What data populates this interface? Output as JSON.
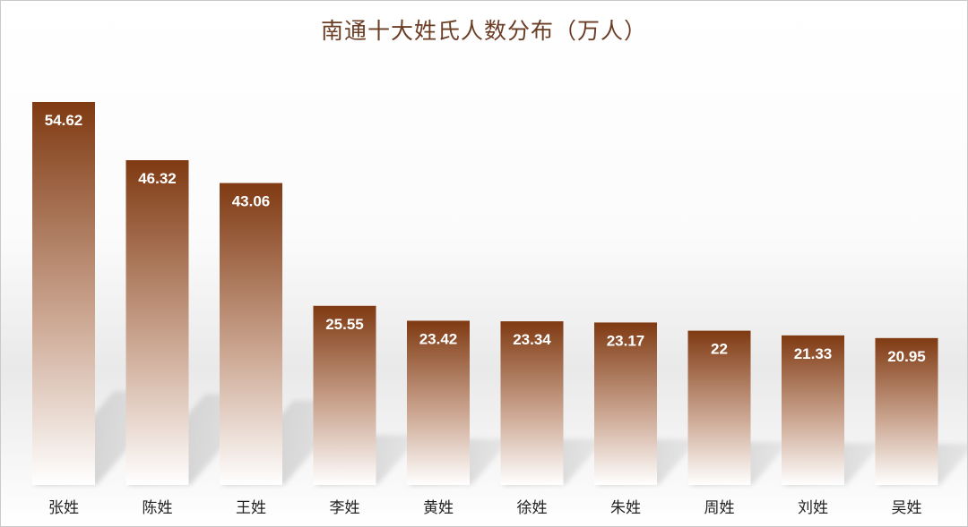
{
  "chart_data": {
    "type": "bar",
    "title": "南通十大姓氏人数分布（万人）",
    "categories": [
      "张姓",
      "陈姓",
      "王姓",
      "李姓",
      "黄姓",
      "徐姓",
      "朱姓",
      "周姓",
      "刘姓",
      "吴姓"
    ],
    "values": [
      54.62,
      46.32,
      43.06,
      25.55,
      23.42,
      23.34,
      23.17,
      22,
      21.33,
      20.95
    ],
    "value_labels": [
      "54.62",
      "46.32",
      "43.06",
      "25.55",
      "23.42",
      "23.34",
      "23.17",
      "22",
      "21.33",
      "20.95"
    ],
    "xlabel": "",
    "ylabel": "",
    "grid": false,
    "legend": "none",
    "colors": {
      "bar_top": "#7f3a12",
      "bar_bottom": "#ffffff",
      "label_text": "#ffffff",
      "axis_text": "#222222",
      "title_text": "#6b3d25"
    }
  }
}
